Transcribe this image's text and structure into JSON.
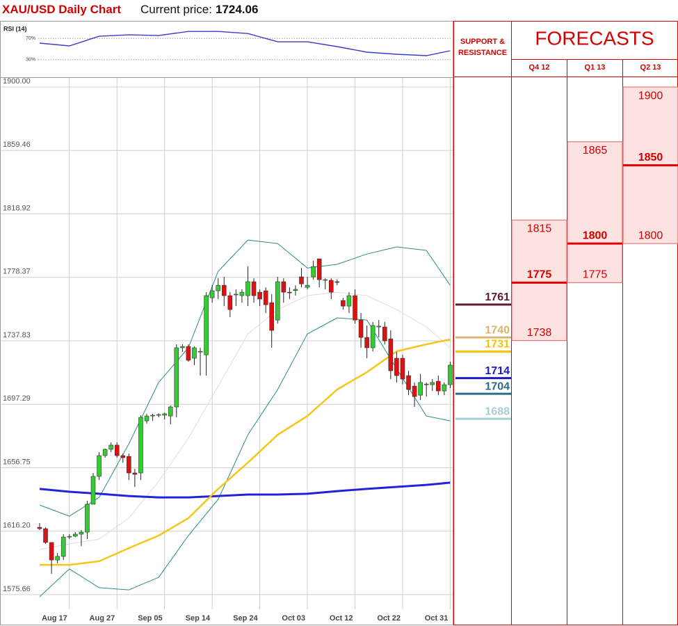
{
  "header": {
    "title": "XAU/USD Daily Chart",
    "price_label": "Current price:",
    "price": 1724.06
  },
  "chart_data": [
    {
      "type": "line",
      "title": "RSI (14)",
      "color": "#3a3acc",
      "x": [
        0,
        5,
        10,
        15,
        20,
        25,
        30,
        35,
        40,
        45,
        50,
        55,
        60,
        65,
        69
      ],
      "values": [
        61.0,
        55.8,
        73.9,
        76.5,
        75.2,
        82.9,
        82.9,
        79.0,
        63.5,
        63.5,
        54.5,
        44.2,
        40.3,
        37.7,
        46.8
      ],
      "ylim": [
        0,
        100
      ],
      "yticks": [
        {
          "value": 70,
          "label": "70%"
        },
        {
          "value": 30,
          "label": "30%"
        }
      ]
    },
    {
      "type": "candlestick",
      "color_up": "#33cc33",
      "color_down": "#dd1111",
      "grid": true,
      "categories": [
        null,
        null,
        null,
        null,
        null,
        "Aug 17",
        null,
        null,
        null,
        null,
        null,
        null,
        null,
        "Aug 27",
        null,
        null,
        null,
        null,
        null,
        null,
        null,
        "Sep 05",
        null,
        null,
        null,
        null,
        null,
        null,
        null,
        "Sep 14",
        null,
        null,
        null,
        null,
        null,
        null,
        null,
        "Sep 24",
        null,
        null,
        null,
        null,
        null,
        null,
        null,
        "Oct 03",
        null,
        null,
        null,
        null,
        null,
        null,
        null,
        "Oct 12",
        null,
        null,
        null,
        null,
        null,
        null,
        null,
        "Oct 22",
        null,
        null,
        null,
        null,
        null,
        null,
        null,
        "Oct 31"
      ],
      "open": [
        1618.7,
        1617.8,
        1609.0,
        1597.8,
        1600.1,
        1612.5,
        1613.0,
        1614.3,
        1615.6,
        1633.4,
        1651.2,
        1664.5,
        1668.5,
        1671.2,
        1664.5,
        1664.0,
        1653.4,
        1653.4,
        1686.7,
        1689.8,
        1690.3,
        1690.3,
        1689.8,
        1695.6,
        1733.4,
        1734.2,
        1726.7,
        1730.7,
        1728.9,
        1765.3,
        1769.8,
        1773.3,
        1766.7,
        1767.2,
        1766.7,
        1766.7,
        1775.6,
        1768.9,
        1769.8,
        1762.2,
        1751.1,
        1775.6,
        1768.9,
        1770.0,
        1778.7,
        1772.0,
        1778.7,
        1790.2,
        1776.5,
        1776.5,
        1775.6,
        1763.6,
        1760.0,
        1766.7,
        1751.1,
        1740.0,
        1733.4,
        1746.7,
        1746.7,
        1739.1,
        1726.7,
        1726.7,
        1715.6,
        1708.9,
        1703.1,
        1709.8,
        1709.8,
        1712.0,
        1705.8,
        1709.8
      ],
      "high": [
        1621.4,
        1618.7,
        1609.0,
        1602.3,
        1614.3,
        1614.3,
        1615.6,
        1616.9,
        1635.6,
        1653.4,
        1666.7,
        1669.0,
        1672.9,
        1672.9,
        1665.8,
        1665.8,
        1656.0,
        1690.3,
        1691.2,
        1691.2,
        1691.5,
        1692.0,
        1696.5,
        1735.6,
        1735.6,
        1735.6,
        1734.2,
        1733.4,
        1768.9,
        1773.3,
        1777.8,
        1778.7,
        1768.9,
        1770.7,
        1770.7,
        1785.3,
        1777.8,
        1770.7,
        1772.0,
        1767.6,
        1778.7,
        1777.8,
        1772.0,
        1773.3,
        1784.4,
        1778.7,
        1788.9,
        1790.2,
        1777.8,
        1777.8,
        1777.0,
        1765.3,
        1768.9,
        1770.7,
        1755.6,
        1747.6,
        1749.8,
        1751.1,
        1749.8,
        1744.5,
        1730.7,
        1728.9,
        1718.7,
        1711.2,
        1716.7,
        1711.2,
        1713.4,
        1715.6,
        1711.2,
        1724.5
      ],
      "low": [
        1616.9,
        1608.1,
        1588.9,
        1595.6,
        1597.8,
        1611.2,
        1612.5,
        1606.7,
        1611.2,
        1633.4,
        1648.9,
        1663.2,
        1666.7,
        1663.2,
        1660.0,
        1648.9,
        1644.5,
        1648.9,
        1685.0,
        1686.7,
        1688.9,
        1687.6,
        1684.5,
        1688.9,
        1730.7,
        1724.5,
        1722.3,
        1715.6,
        1715.6,
        1762.2,
        1764.5,
        1760.0,
        1753.0,
        1760.0,
        1762.2,
        1760.0,
        1762.2,
        1760.0,
        1755.6,
        1733.4,
        1748.9,
        1762.2,
        1764.5,
        1766.7,
        1772.0,
        1770.7,
        1776.9,
        1772.0,
        1770.7,
        1764.5,
        1773.3,
        1757.8,
        1755.6,
        1748.9,
        1733.4,
        1726.7,
        1731.1,
        1740.0,
        1735.6,
        1713.4,
        1711.2,
        1710.0,
        1703.1,
        1695.6,
        1700.0,
        1702.2,
        1705.8,
        1703.1,
        1703.1,
        1707.6
      ],
      "close": [
        1617.8,
        1609.0,
        1597.8,
        1600.1,
        1612.5,
        1612.9,
        1614.3,
        1615.6,
        1633.4,
        1651.2,
        1664.5,
        1668.5,
        1671.2,
        1664.5,
        1663.2,
        1653.4,
        1652.5,
        1688.9,
        1689.8,
        1690.3,
        1690.7,
        1691.2,
        1695.6,
        1733.4,
        1734.2,
        1725.4,
        1733.4,
        1731.1,
        1766.7,
        1769.8,
        1773.3,
        1766.7,
        1757.8,
        1767.6,
        1768.9,
        1775.6,
        1766.7,
        1764.5,
        1760.9,
        1744.5,
        1775.6,
        1768.9,
        1768.5,
        1770.7,
        1774.2,
        1773.3,
        1785.3,
        1776.9,
        1776.9,
        1768.9,
        1775.2,
        1760.0,
        1766.7,
        1751.1,
        1740.0,
        1733.4,
        1747.6,
        1747.2,
        1737.8,
        1718.7,
        1715.6,
        1713.4,
        1706.7,
        1702.2,
        1711.2,
        1710.2,
        1711.2,
        1705.8,
        1709.8,
        1722.3
      ],
      "ylim": [
        1566.3,
        1905.8
      ],
      "yticks": [
        1575.66,
        {
          "value": 1616.2,
          "label": "1616.20"
        },
        1656.75,
        1697.29,
        1737.83,
        1778.37,
        1818.92,
        1859.46,
        {
          "value": 1900,
          "label": "1900.00"
        }
      ],
      "overlays": [
        {
          "color": "#dddddd",
          "width": 1,
          "x": [
            0,
            5,
            10,
            15,
            20,
            25,
            30,
            35,
            40,
            45,
            50,
            55,
            60,
            65,
            69
          ],
          "values": [
            1604.5,
            1608.1,
            1611.2,
            1624.5,
            1648.0,
            1675.6,
            1708.9,
            1742.2,
            1757.8,
            1766.7,
            1768.9,
            1766.7,
            1757.8,
            1746.7,
            1733.4
          ]
        },
        {
          "color": "#2a8a8a",
          "width": 1,
          "x": [
            0,
            5,
            10,
            15,
            20,
            25,
            30,
            35,
            40,
            45,
            50,
            55,
            60,
            65,
            69
          ],
          "values": [
            1632.9,
            1625.8,
            1637.8,
            1672.0,
            1711.2,
            1733.4,
            1782.2,
            1802.2,
            1800.0,
            1784.4,
            1786.7,
            1793.3,
            1797.8,
            1795.6,
            1773.3
          ]
        },
        {
          "color": "#2a8a8a",
          "width": 1,
          "x": [
            0,
            5,
            10,
            15,
            20,
            25,
            30,
            35,
            40,
            45,
            50,
            55,
            60,
            65,
            69
          ],
          "values": [
            1574.3,
            1592.1,
            1580.1,
            1578.7,
            1586.7,
            1613.4,
            1636.5,
            1677.8,
            1706.7,
            1742.2,
            1752.5,
            1751.1,
            1720.0,
            1689.8,
            1686.7
          ]
        },
        {
          "color": "#2222dd",
          "width": 3,
          "x": [
            0,
            5,
            10,
            15,
            20,
            25,
            30,
            35,
            40,
            45,
            50,
            55,
            60,
            65,
            69
          ],
          "values": [
            1643.2,
            1641.4,
            1640.1,
            1638.7,
            1637.8,
            1637.8,
            1638.7,
            1639.6,
            1639.6,
            1640.1,
            1641.8,
            1643.2,
            1644.5,
            1645.8,
            1647.2
          ]
        },
        {
          "color": "#f5c518",
          "width": 2.5,
          "x": [
            0,
            5,
            10,
            15,
            20,
            25,
            30,
            35,
            40,
            45,
            50,
            55,
            60,
            65,
            69
          ],
          "values": [
            1594.7,
            1594.7,
            1597.0,
            1605.4,
            1613.4,
            1624.5,
            1643.2,
            1660.0,
            1677.8,
            1689.8,
            1706.7,
            1717.8,
            1731.1,
            1735.6,
            1738.7
          ]
        }
      ]
    }
  ],
  "support_resistance": {
    "title": "SUPPORT & RESISTANCE",
    "levels": [
      {
        "value": 1761,
        "color": "#5c1a33"
      },
      {
        "value": 1740,
        "color": "#d9b46e"
      },
      {
        "value": 1731,
        "color": "#f5c400"
      },
      {
        "value": 1714,
        "color": "#1a1acc"
      },
      {
        "value": 1704,
        "color": "#2d6b8a"
      },
      {
        "value": 1688,
        "color": "#a9cdd5"
      }
    ]
  },
  "forecasts": {
    "title": "FORECASTS",
    "columns": [
      {
        "label": "Q4 12",
        "high": 1815,
        "mid": 1775,
        "low": 1738
      },
      {
        "label": "Q1 13",
        "high": 1865,
        "mid": 1800,
        "low": 1775
      },
      {
        "label": "Q2 13",
        "high": 1900,
        "mid": 1850,
        "low": 1800
      }
    ]
  }
}
